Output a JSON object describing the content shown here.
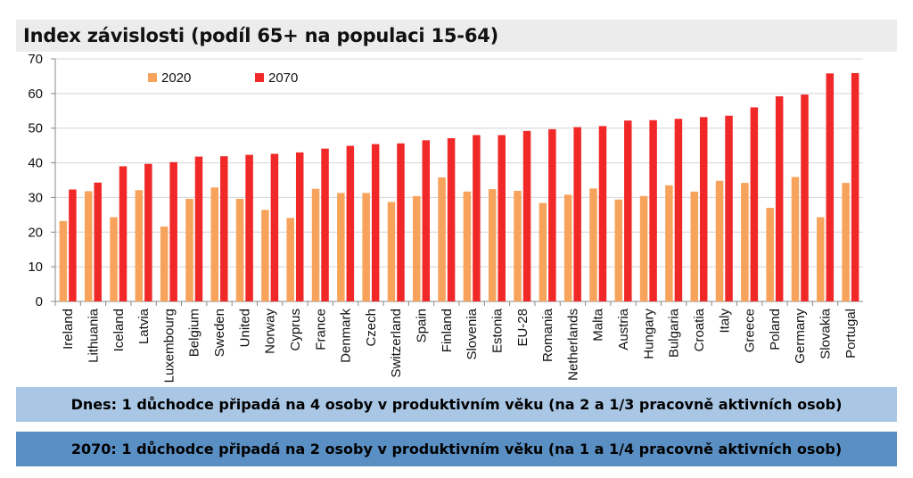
{
  "chart_data": {
    "type": "bar",
    "title": "Index závislosti (podíl 65+ na populaci 15-64)",
    "categories": [
      "Ireland",
      "Lithuania",
      "Iceland",
      "Latvia",
      "Luxembourg",
      "Belgium",
      "Sweden",
      "United",
      "Norway",
      "Cyprus",
      "France",
      "Denmark",
      "Czech",
      "Switzerland",
      "Spain",
      "Finland",
      "Slovenia",
      "Estonia",
      "EU-28",
      "Romania",
      "Netherlands",
      "Malta",
      "Austria",
      "Hungary",
      "Bulgaria",
      "Croatia",
      "Italy",
      "Greece",
      "Poland",
      "Germany",
      "Slovakia",
      "Portugal"
    ],
    "series": [
      {
        "name": "2020",
        "color": "#f7a35c",
        "values": [
          23.2,
          31.8,
          24.3,
          32.1,
          21.6,
          29.6,
          32.9,
          29.6,
          26.4,
          24.1,
          32.5,
          31.3,
          31.3,
          28.7,
          30.4,
          35.8,
          31.7,
          32.4,
          31.9,
          28.4,
          30.8,
          32.6,
          29.4,
          30.4,
          33.5,
          31.7,
          34.8,
          34.2,
          27.0,
          35.9,
          24.3,
          34.2
        ]
      },
      {
        "name": "2070",
        "color": "#f02828",
        "values": [
          32.3,
          34.3,
          39.0,
          39.7,
          40.2,
          41.8,
          41.9,
          42.3,
          42.6,
          43.0,
          44.1,
          44.9,
          45.4,
          45.6,
          46.5,
          47.1,
          48.0,
          48.0,
          49.2,
          49.7,
          50.3,
          50.6,
          52.2,
          52.3,
          52.7,
          53.2,
          53.6,
          56.0,
          59.2,
          59.7,
          65.8,
          65.9
        ]
      }
    ],
    "ylim": [
      0,
      70
    ],
    "yticks": [
      0,
      10,
      20,
      30,
      40,
      50,
      60,
      70
    ],
    "grid": true,
    "legend": "top-left"
  },
  "banners": {
    "today": "Dnes: 1 důchodce připadá na 4 osoby v produktivním věku (na 2 a 1/3 pracovně aktivních osob)",
    "year2070": "2070: 1 důchodce připadá na 2 osoby v produktivním věku (na 1 a 1/4 pracovně aktivních osob)"
  }
}
